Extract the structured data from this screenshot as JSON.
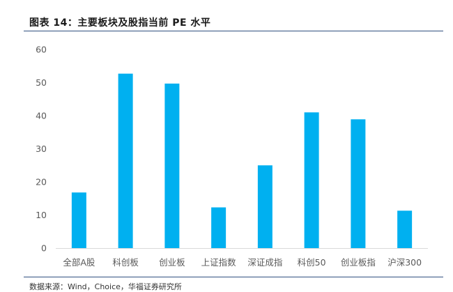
{
  "figure": {
    "title": "图表 14：主要板块及股指当前 PE 水平",
    "source": "数据来源：Wind，Choice，华福证券研究所"
  },
  "colors": {
    "bar": "#00B0F0",
    "axis_text": "#595959",
    "rule": "#2f4f7f"
  },
  "chart_data": {
    "type": "bar",
    "categories": [
      "全部A股",
      "科创板",
      "创业板",
      "上证指数",
      "深证成指",
      "科创50",
      "创业板指",
      "沪深300"
    ],
    "series": [
      {
        "values": [
          16.8,
          52.7,
          49.7,
          12.3,
          25.0,
          41.0,
          38.9,
          11.3
        ]
      }
    ],
    "ylim": [
      0,
      60
    ],
    "yticks": [
      0,
      10,
      20,
      30,
      40,
      50,
      60
    ],
    "grid": false,
    "legend": "none"
  }
}
